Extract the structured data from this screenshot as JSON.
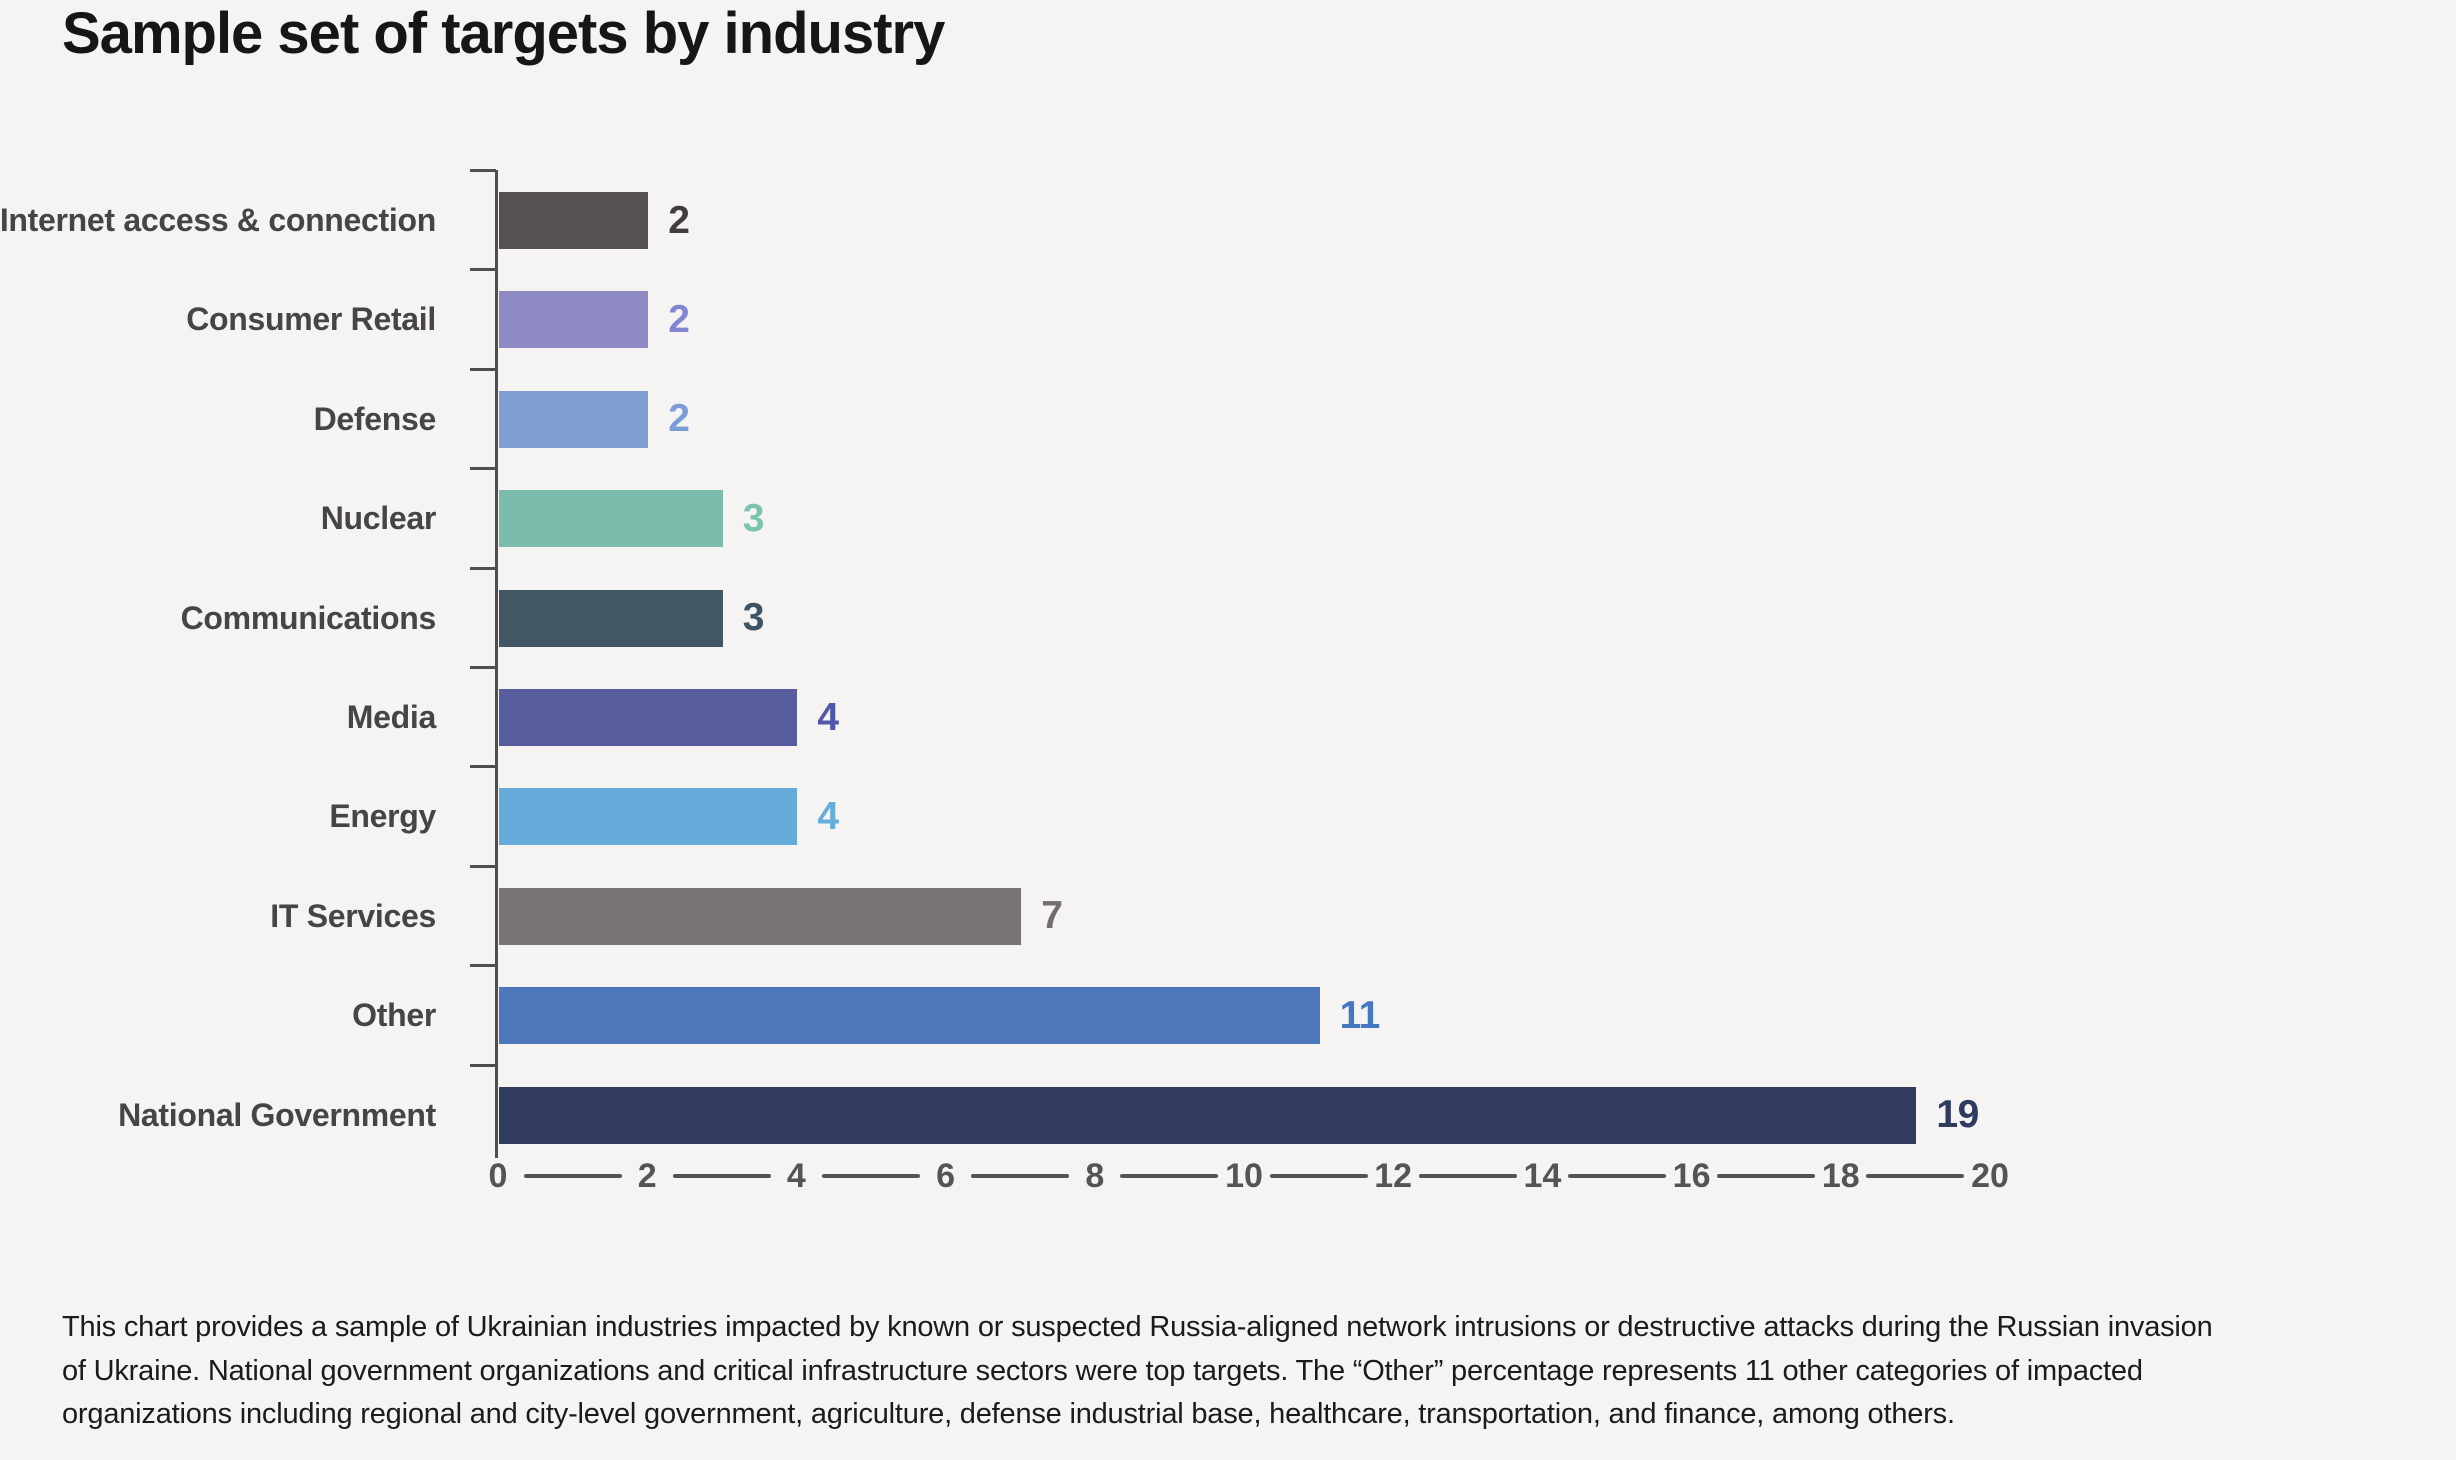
{
  "page": {
    "background_color": "#f5f4f3"
  },
  "chart_data": {
    "type": "bar",
    "orientation": "horizontal",
    "title": "Sample set of targets by industry",
    "categories": [
      "Internet access & connection",
      "Consumer Retail",
      "Defense",
      "Nuclear",
      "Communications",
      "Media",
      "Energy",
      "IT Services",
      "Other",
      "National Government"
    ],
    "values": [
      2,
      2,
      2,
      3,
      3,
      4,
      4,
      7,
      11,
      19
    ],
    "bar_colors": [
      "#565150",
      "#8e8ac3",
      "#7f9ed2",
      "#7bbcad",
      "#425763",
      "#575c9f",
      "#64abd9",
      "#787473",
      "#4c77ba",
      "#303b5d"
    ],
    "value_label_colors": [
      "#413d3c",
      "#8286d2",
      "#7b9cd4",
      "#7cc4b1",
      "#3e5363",
      "#5058ab",
      "#64aede",
      "#716d6c",
      "#4478c1",
      "#2e3a5e"
    ],
    "xlim": [
      0,
      20
    ],
    "x_ticks": [
      0,
      2,
      4,
      6,
      8,
      10,
      12,
      14,
      16,
      18,
      20
    ],
    "grid": false,
    "legend": "none",
    "axis_color": "#514f4d",
    "x_tick_label_color": "#545456",
    "category_label_color": "#454545"
  },
  "caption": {
    "lines": [
      "This chart provides a sample of Ukrainian industries impacted by known or suspected Russia-aligned network intrusions or destructive attacks during the Russian invasion",
      "of Ukraine. National government organizations and critical infrastructure sectors were top targets. The “Other” percentage represents 11 other categories of impacted",
      "organizations including regional and city-level government, agriculture, defense industrial base, healthcare, transportation, and finance, among others."
    ]
  }
}
